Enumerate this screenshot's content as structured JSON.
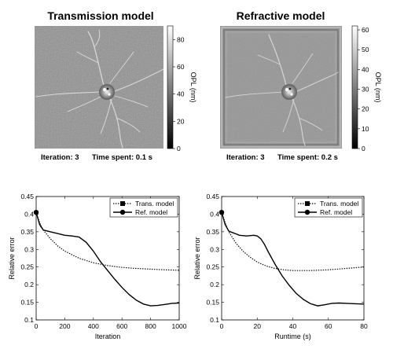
{
  "panels": [
    {
      "title": "Transmission model",
      "caption_left": "Iteration: 3",
      "caption_right": "Time spent: 0.1 s",
      "colorbar": {
        "label": "OPL (nm)",
        "ticks": [
          "0",
          "20",
          "40",
          "60",
          "80"
        ],
        "min": 0,
        "max": 90
      },
      "border": false
    },
    {
      "title": "Refractive model",
      "caption_left": "Iteration: 3",
      "caption_right": "Time spent: 0.2 s",
      "colorbar": {
        "label": "OPL (nm)",
        "ticks": [
          "0",
          "10",
          "20",
          "30",
          "40",
          "50",
          "60"
        ],
        "min": 0,
        "max": 62
      },
      "border": true
    }
  ],
  "chart_data": [
    {
      "type": "line",
      "xlabel": "Iteration",
      "ylabel": "Relative error",
      "xlim": [
        0,
        1000
      ],
      "ylim": [
        0.1,
        0.45
      ],
      "xticks": [
        "0",
        "200",
        "400",
        "600",
        "800",
        "1000"
      ],
      "yticks": [
        "0.1",
        "0.15",
        "0.2",
        "0.25",
        "0.3",
        "0.35",
        "0.4",
        "0.45"
      ],
      "legend": "top-right",
      "series": [
        {
          "name": "Trans. model",
          "style": "dotted",
          "marker": "square",
          "x": [
            0,
            25,
            50,
            100,
            150,
            200,
            300,
            400,
            500,
            600,
            700,
            800,
            900,
            1000
          ],
          "y": [
            0.405,
            0.375,
            0.355,
            0.33,
            0.31,
            0.295,
            0.275,
            0.262,
            0.254,
            0.249,
            0.246,
            0.244,
            0.242,
            0.241
          ]
        },
        {
          "name": "Ref. model",
          "style": "solid",
          "marker": "circle",
          "x": [
            0,
            25,
            50,
            100,
            150,
            200,
            250,
            300,
            350,
            400,
            450,
            500,
            550,
            600,
            650,
            700,
            750,
            800,
            850,
            900,
            950,
            1000
          ],
          "y": [
            0.405,
            0.37,
            0.355,
            0.35,
            0.345,
            0.34,
            0.338,
            0.335,
            0.32,
            0.295,
            0.265,
            0.24,
            0.215,
            0.192,
            0.172,
            0.156,
            0.145,
            0.14,
            0.141,
            0.144,
            0.147,
            0.148
          ]
        }
      ]
    },
    {
      "type": "line",
      "xlabel": "Runtime (s)",
      "ylabel": "Relative error",
      "xlim": [
        0,
        80
      ],
      "ylim": [
        0.1,
        0.45
      ],
      "xticks": [
        "0",
        "20",
        "40",
        "60",
        "80"
      ],
      "yticks": [
        "0.1",
        "0.15",
        "0.2",
        "0.25",
        "0.3",
        "0.35",
        "0.4",
        "0.45"
      ],
      "legend": "top-right",
      "series": [
        {
          "name": "Trans. model",
          "style": "dotted",
          "marker": "square",
          "x": [
            0,
            2,
            4,
            8,
            12,
            16,
            20,
            25,
            30,
            35,
            40,
            50,
            60,
            70,
            80
          ],
          "y": [
            0.405,
            0.375,
            0.35,
            0.318,
            0.295,
            0.278,
            0.264,
            0.253,
            0.246,
            0.242,
            0.24,
            0.24,
            0.242,
            0.246,
            0.25
          ]
        },
        {
          "name": "Ref. model",
          "style": "solid",
          "marker": "circle",
          "x": [
            0,
            2,
            4,
            6,
            8,
            10,
            14,
            18,
            20,
            22,
            24,
            26,
            30,
            34,
            38,
            42,
            46,
            50,
            54,
            58,
            62,
            66,
            70,
            75,
            80
          ],
          "y": [
            0.405,
            0.37,
            0.352,
            0.348,
            0.344,
            0.34,
            0.338,
            0.34,
            0.338,
            0.33,
            0.315,
            0.295,
            0.258,
            0.225,
            0.198,
            0.175,
            0.158,
            0.146,
            0.14,
            0.143,
            0.147,
            0.148,
            0.147,
            0.146,
            0.145
          ]
        }
      ]
    }
  ]
}
